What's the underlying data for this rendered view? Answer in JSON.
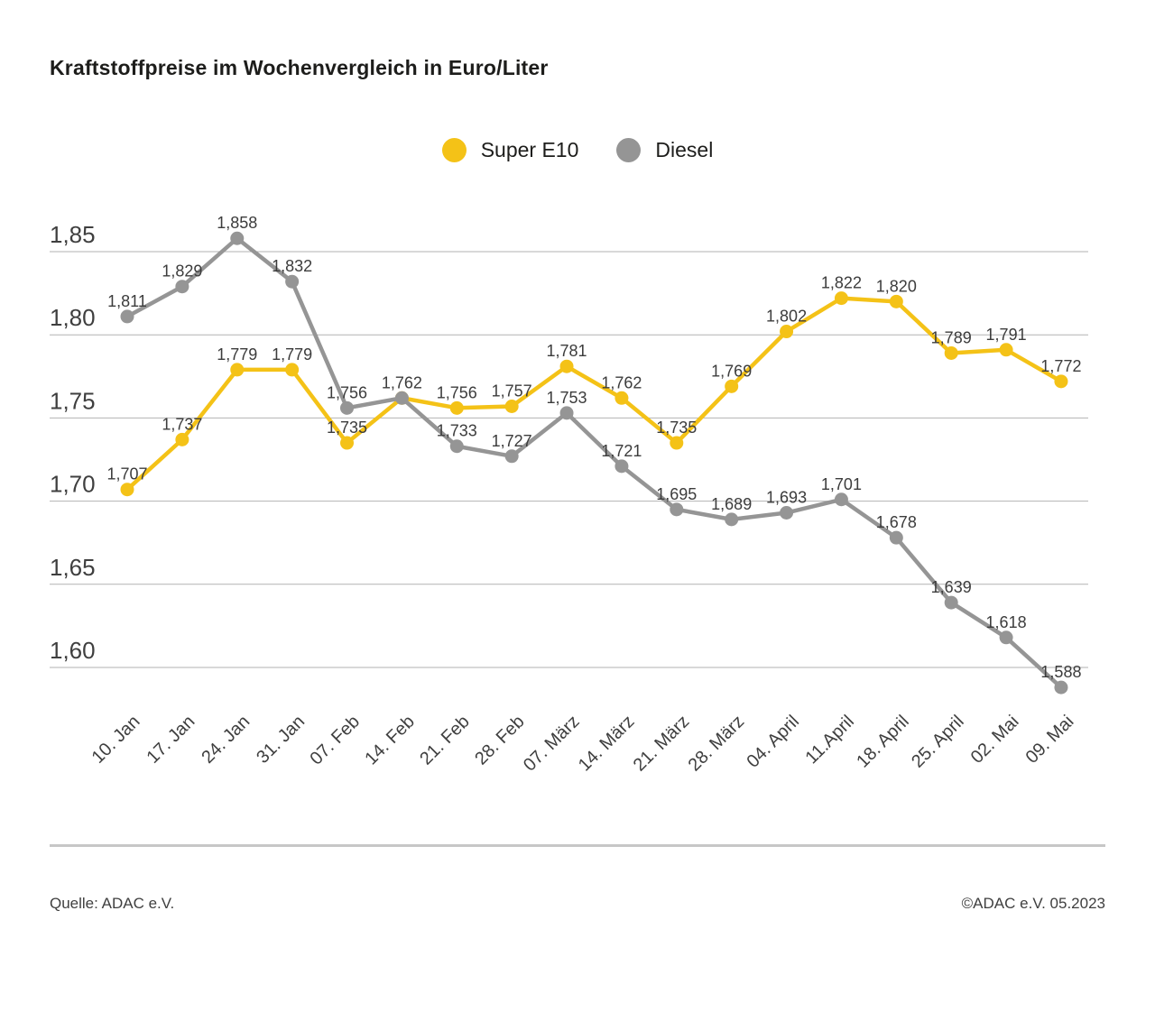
{
  "title": "Kraftstoffpreise im Wochenvergleich in Euro/Liter",
  "legend": {
    "items": [
      {
        "label": "Super E10",
        "color": "#F4C217"
      },
      {
        "label": "Diesel",
        "color": "#959595"
      }
    ]
  },
  "footer": {
    "source": "Quelle: ADAC e.V.",
    "copyright": "©ADAC e.V. 05.2023"
  },
  "chart_data": {
    "type": "line",
    "title": "Kraftstoffpreise im Wochenvergleich in Euro/Liter",
    "unit": "Euro/Liter",
    "categories": [
      "10. Jan",
      "17. Jan",
      "24. Jan",
      "31. Jan",
      "07. Feb",
      "14. Feb",
      "21. Feb",
      "28. Feb",
      "07. März",
      "14. März",
      "21. März",
      "28. März",
      "04. April",
      "11.April",
      "18. April",
      "25. April",
      "02. Mai",
      "09. Mai"
    ],
    "series": [
      {
        "name": "Super E10",
        "color": "#F4C217",
        "values": [
          1.707,
          1.737,
          1.779,
          1.779,
          1.735,
          1.762,
          1.756,
          1.757,
          1.781,
          1.762,
          1.735,
          1.769,
          1.802,
          1.822,
          1.82,
          1.789,
          1.791,
          1.772
        ],
        "point_labels": [
          "1,707",
          "1,737",
          "1,779",
          "1,779",
          "1,735",
          "1,762",
          "1,756",
          "1,757",
          "1,781",
          "1,762",
          "1,735",
          "1,769",
          "1,802",
          "1,822",
          "1,820",
          "1,789",
          "1,791",
          "1,772"
        ]
      },
      {
        "name": "Diesel",
        "color": "#959595",
        "values": [
          1.811,
          1.829,
          1.858,
          1.832,
          1.756,
          1.762,
          1.733,
          1.727,
          1.753,
          1.721,
          1.695,
          1.689,
          1.693,
          1.701,
          1.678,
          1.639,
          1.618,
          1.588
        ],
        "point_labels": [
          "1,811",
          "1,829",
          "1,858",
          "1,832",
          "1,756",
          "1,762",
          "1,733",
          "1,727",
          "1,753",
          "1,721",
          "1,695",
          "1,689",
          "1,693",
          "1,701",
          "1,678",
          "1,639",
          "1,618",
          "1,588"
        ]
      }
    ],
    "yticks": [
      {
        "value": 1.85,
        "label": "1,85"
      },
      {
        "value": 1.8,
        "label": "1,80"
      },
      {
        "value": 1.75,
        "label": "1,75"
      },
      {
        "value": 1.7,
        "label": "1,70"
      },
      {
        "value": 1.65,
        "label": "1,65"
      },
      {
        "value": 1.6,
        "label": "1,60"
      }
    ],
    "ylim": [
      1.588,
      1.858
    ],
    "grid": true,
    "legend_position": "top-center",
    "value_format": "comma-decimal"
  }
}
